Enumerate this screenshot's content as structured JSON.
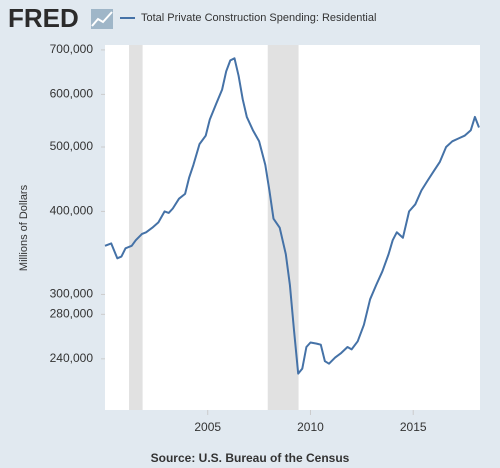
{
  "logo": "FRED",
  "source": "Source: U.S. Bureau of the Census",
  "chart_data": {
    "type": "line",
    "y_label": "Millions of Dollars",
    "log_scale": true,
    "grid": false,
    "x": [
      2000.0,
      2000.3,
      2000.6,
      2000.8,
      2001.0,
      2001.3,
      2001.5,
      2001.8,
      2002.0,
      2002.3,
      2002.6,
      2002.9,
      2003.1,
      2003.3,
      2003.6,
      2003.9,
      2004.1,
      2004.3,
      2004.6,
      2004.9,
      2005.1,
      2005.4,
      2005.7,
      2005.9,
      2006.1,
      2006.3,
      2006.5,
      2006.7,
      2006.9,
      2007.2,
      2007.5,
      2007.8,
      2008.0,
      2008.2,
      2008.5,
      2008.8,
      2009.0,
      2009.2,
      2009.4,
      2009.6,
      2009.8,
      2010.0,
      2010.3,
      2010.5,
      2010.7,
      2010.9,
      2011.2,
      2011.5,
      2011.8,
      2012.0,
      2012.3,
      2012.6,
      2012.9,
      2013.2,
      2013.5,
      2013.8,
      2014.0,
      2014.2,
      2014.5,
      2014.8,
      2015.1,
      2015.4,
      2015.7,
      2016.0,
      2016.3,
      2016.6,
      2016.9,
      2017.2,
      2017.5,
      2017.8,
      2018.0,
      2018.2
    ],
    "series": [
      {
        "name": "Total Private Construction Spending: Residential",
        "color": "#4572a7",
        "values": [
          355000,
          358000,
          340000,
          342000,
          352000,
          355000,
          362000,
          370000,
          372000,
          378000,
          385000,
          400000,
          398000,
          404000,
          418000,
          425000,
          450000,
          470000,
          505000,
          520000,
          550000,
          580000,
          610000,
          650000,
          675000,
          680000,
          640000,
          590000,
          555000,
          530000,
          510000,
          470000,
          430000,
          390000,
          378000,
          345000,
          310000,
          265000,
          228000,
          232000,
          250000,
          254000,
          253000,
          252000,
          238000,
          236000,
          241000,
          245000,
          250000,
          248000,
          255000,
          270000,
          295000,
          310000,
          325000,
          345000,
          362000,
          372000,
          365000,
          400000,
          410000,
          430000,
          445000,
          460000,
          475000,
          500000,
          510000,
          515000,
          520000,
          530000,
          555000,
          535000
        ]
      }
    ],
    "recessions": [
      [
        2001.17,
        2001.83
      ],
      [
        2007.92,
        2009.42
      ]
    ],
    "xlim": [
      2000,
      2018.25
    ],
    "xticks": [
      2005,
      2010,
      2015
    ],
    "ylim": [
      201000,
      712000
    ],
    "yticks": [
      {
        "value": 240000,
        "label": "240,000"
      },
      {
        "value": 280000,
        "label": "280,000"
      },
      {
        "value": 300000,
        "label": "300,000"
      },
      {
        "value": 400000,
        "label": "400,000"
      },
      {
        "value": 500000,
        "label": "500,000"
      },
      {
        "value": 600000,
        "label": "600,000"
      },
      {
        "value": 700000,
        "label": "700,000"
      }
    ]
  }
}
